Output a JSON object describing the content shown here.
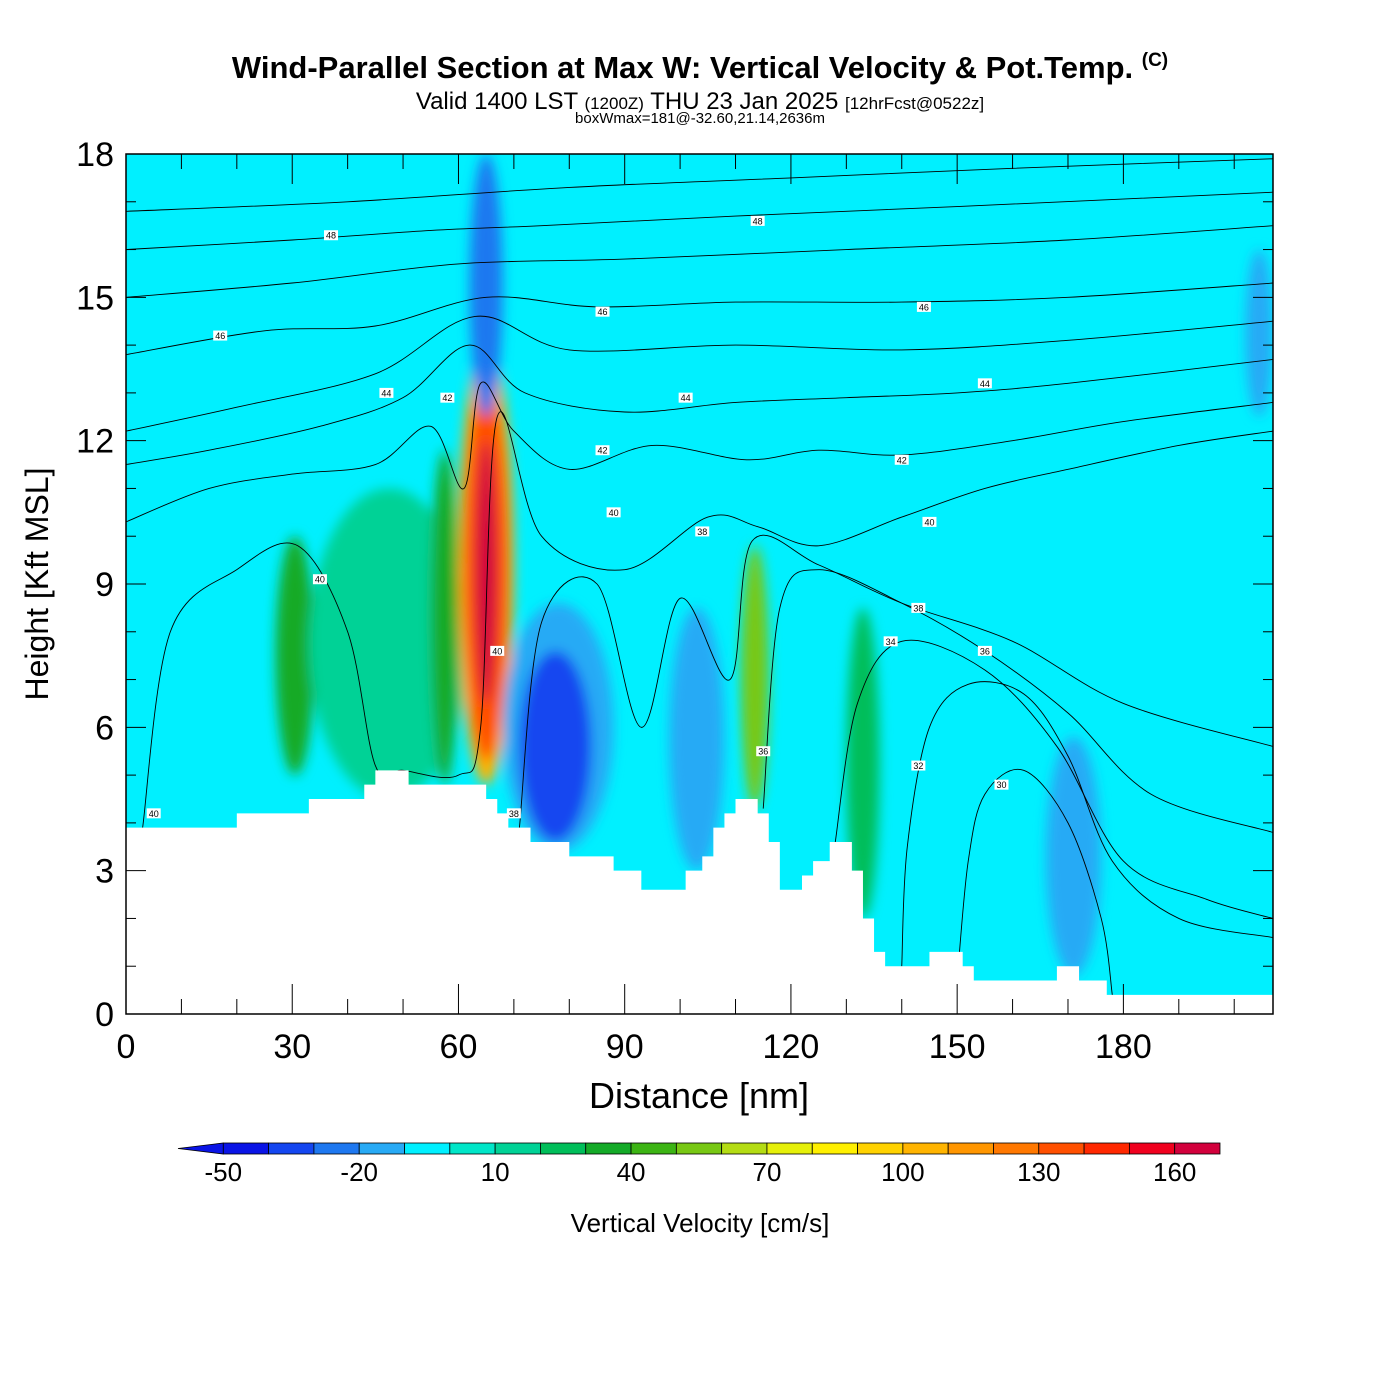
{
  "header": {
    "title": "Wind-Parallel Section at Max W: Vertical Velocity & Pot.Temp.",
    "copyright": "(C)",
    "valid_prefix": "Valid 1400 LST",
    "valid_utc": "(1200Z)",
    "valid_date": "THU 23 Jan 2025",
    "forecast": "[12hrFcst@0522z]",
    "note": "boxWmax=181@-32.60,21.14,2636m"
  },
  "chart_data": {
    "type": "heatmap",
    "xlabel": "Distance [nm]",
    "ylabel": "Height [Kft MSL]",
    "xlim": [
      0,
      207
    ],
    "ylim": [
      0,
      18
    ],
    "x_ticks": [
      0,
      30,
      60,
      90,
      120,
      150,
      180
    ],
    "y_ticks": [
      0,
      3,
      6,
      9,
      12,
      15,
      18
    ],
    "colorbar": {
      "label": "Vertical Velocity [cm/s]",
      "range": [
        -50,
        180
      ],
      "step": 10,
      "tick_values": [
        -50,
        -20,
        10,
        40,
        70,
        100,
        130,
        160
      ],
      "colors": [
        "#0a14e6",
        "#1446f0",
        "#1e78f0",
        "#28aaf5",
        "#00f0ff",
        "#00e6c8",
        "#00d296",
        "#00be5a",
        "#14aa28",
        "#3cb414",
        "#78c814",
        "#b4dc14",
        "#e6f00a",
        "#fff000",
        "#ffd200",
        "#ffb400",
        "#ff9600",
        "#ff7800",
        "#ff5000",
        "#ff2800",
        "#f0001e",
        "#d2003c"
      ]
    },
    "terrain": [
      [
        0,
        3.9
      ],
      [
        20,
        3.9
      ],
      [
        20,
        4.2
      ],
      [
        33,
        4.2
      ],
      [
        33,
        4.5
      ],
      [
        43,
        4.5
      ],
      [
        43,
        4.8
      ],
      [
        45,
        4.8
      ],
      [
        45,
        5.1
      ],
      [
        51,
        5.1
      ],
      [
        51,
        4.8
      ],
      [
        65,
        4.8
      ],
      [
        65,
        4.5
      ],
      [
        67,
        4.5
      ],
      [
        67,
        4.2
      ],
      [
        69,
        4.2
      ],
      [
        69,
        3.9
      ],
      [
        73,
        3.9
      ],
      [
        73,
        3.6
      ],
      [
        80,
        3.6
      ],
      [
        80,
        3.3
      ],
      [
        88,
        3.3
      ],
      [
        88,
        3.0
      ],
      [
        93,
        3.0
      ],
      [
        93,
        2.6
      ],
      [
        101,
        2.6
      ],
      [
        101,
        3.0
      ],
      [
        104,
        3.0
      ],
      [
        104,
        3.3
      ],
      [
        106,
        3.3
      ],
      [
        106,
        3.9
      ],
      [
        108,
        3.9
      ],
      [
        108,
        4.2
      ],
      [
        110,
        4.2
      ],
      [
        110,
        4.5
      ],
      [
        114,
        4.5
      ],
      [
        114,
        4.2
      ],
      [
        116,
        4.2
      ],
      [
        116,
        3.6
      ],
      [
        118,
        3.6
      ],
      [
        118,
        2.6
      ],
      [
        122,
        2.6
      ],
      [
        122,
        2.9
      ],
      [
        124,
        2.9
      ],
      [
        124,
        3.2
      ],
      [
        127,
        3.2
      ],
      [
        127,
        3.6
      ],
      [
        131,
        3.6
      ],
      [
        131,
        3.0
      ],
      [
        133,
        3.0
      ],
      [
        133,
        2.0
      ],
      [
        135,
        2.0
      ],
      [
        135,
        1.3
      ],
      [
        137,
        1.3
      ],
      [
        137,
        1.0
      ],
      [
        145,
        1.0
      ],
      [
        145,
        1.3
      ],
      [
        151,
        1.3
      ],
      [
        151,
        1.0
      ],
      [
        153,
        1.0
      ],
      [
        153,
        0.7
      ],
      [
        168,
        0.7
      ],
      [
        168,
        1.0
      ],
      [
        172,
        1.0
      ],
      [
        172,
        0.7
      ],
      [
        177,
        0.7
      ],
      [
        177,
        0.4
      ],
      [
        207,
        0.4
      ]
    ],
    "w_cells": [
      {
        "x": [
          8,
          13
        ],
        "y": [
          4.5,
          9.5
        ],
        "w": -10
      },
      {
        "x": [
          27,
          34
        ],
        "y": [
          5.0,
          10.0
        ],
        "w": 35
      },
      {
        "x": [
          33,
          62
        ],
        "y": [
          4.5,
          11.0
        ],
        "w": 15
      },
      {
        "x": [
          55,
          60
        ],
        "y": [
          4.8,
          11.8
        ],
        "w": 35
      },
      {
        "x": [
          60,
          70
        ],
        "y": [
          4.8,
          14.0
        ],
        "w": 105
      },
      {
        "x": [
          61,
          69
        ],
        "y": [
          5.3,
          13.3
        ],
        "w": 135
      },
      {
        "x": [
          63,
          67
        ],
        "y": [
          6.5,
          12.0
        ],
        "w": 165
      },
      {
        "x": [
          62,
          68
        ],
        "y": [
          12.5,
          18.0
        ],
        "w": -30
      },
      {
        "x": [
          68,
          88
        ],
        "y": [
          3.4,
          8.6
        ],
        "w": -20
      },
      {
        "x": [
          71,
          84
        ],
        "y": [
          3.6,
          7.6
        ],
        "w": -40
      },
      {
        "x": [
          98,
          108
        ],
        "y": [
          3.0,
          8.5
        ],
        "w": -15
      },
      {
        "x": [
          111,
          116
        ],
        "y": [
          4.3,
          9.8
        ],
        "w": 55
      },
      {
        "x": [
          130,
          136
        ],
        "y": [
          2.0,
          8.5
        ],
        "w": 25
      },
      {
        "x": [
          166,
          176
        ],
        "y": [
          0.8,
          5.8
        ],
        "w": -15
      },
      {
        "x": [
          202,
          207
        ],
        "y": [
          12.5,
          16.0
        ],
        "w": -20
      }
    ],
    "contours": [
      {
        "label": "30",
        "points": [
          [
            150,
            0.7
          ],
          [
            152,
            3.2
          ],
          [
            155,
            4.6
          ],
          [
            162,
            5.1
          ],
          [
            170,
            4.0
          ],
          [
            176,
            2.0
          ],
          [
            178,
            0.4
          ]
        ]
      },
      {
        "label": "32",
        "points": [
          [
            140,
            1.0
          ],
          [
            141,
            3.5
          ],
          [
            145,
            6.0
          ],
          [
            152,
            6.9
          ],
          [
            162,
            6.7
          ],
          [
            170,
            5.4
          ],
          [
            178,
            3.2
          ],
          [
            190,
            2.0
          ],
          [
            207,
            1.6
          ]
        ]
      },
      {
        "label": "34",
        "points": [
          [
            128,
            3.6
          ],
          [
            132,
            6.5
          ],
          [
            140,
            7.8
          ],
          [
            155,
            7.2
          ],
          [
            168,
            5.6
          ],
          [
            180,
            3.2
          ],
          [
            195,
            2.4
          ],
          [
            207,
            2.0
          ]
        ]
      },
      {
        "label": "36",
        "points": [
          [
            115,
            4.3
          ],
          [
            118,
            8.5
          ],
          [
            125,
            9.3
          ],
          [
            140,
            8.6
          ],
          [
            155,
            7.6
          ],
          [
            170,
            6.3
          ],
          [
            185,
            4.6
          ],
          [
            207,
            3.8
          ]
        ]
      },
      {
        "label": "38",
        "points": [
          [
            71,
            3.9
          ],
          [
            75,
            8.2
          ],
          [
            85,
            9.0
          ],
          [
            93,
            6.0
          ],
          [
            100,
            8.7
          ],
          [
            109,
            7.0
          ],
          [
            113,
            9.9
          ],
          [
            125,
            9.4
          ],
          [
            140,
            8.6
          ],
          [
            160,
            7.8
          ],
          [
            180,
            6.5
          ],
          [
            207,
            5.6
          ]
        ]
      },
      {
        "label": "40",
        "points": [
          [
            3,
            3.9
          ],
          [
            8,
            8.0
          ],
          [
            20,
            9.3
          ],
          [
            31,
            9.8
          ],
          [
            40,
            8.0
          ],
          [
            45,
            5.2
          ],
          [
            50,
            5.1
          ],
          [
            60,
            5.0
          ],
          [
            64,
            6.0
          ],
          [
            67,
            12.5
          ],
          [
            75,
            10.0
          ],
          [
            90,
            9.3
          ],
          [
            105,
            10.4
          ],
          [
            114,
            10.2
          ],
          [
            125,
            9.8
          ],
          [
            140,
            10.4
          ],
          [
            155,
            11.0
          ],
          [
            170,
            11.4
          ],
          [
            190,
            11.9
          ],
          [
            207,
            12.2
          ]
        ]
      },
      {
        "label": "42",
        "points": [
          [
            0,
            10.3
          ],
          [
            15,
            11.0
          ],
          [
            30,
            11.3
          ],
          [
            45,
            11.5
          ],
          [
            55,
            12.3
          ],
          [
            61,
            11.0
          ],
          [
            64,
            13.2
          ],
          [
            70,
            12.2
          ],
          [
            80,
            11.4
          ],
          [
            95,
            11.9
          ],
          [
            112,
            11.6
          ],
          [
            125,
            11.8
          ],
          [
            140,
            11.7
          ],
          [
            160,
            12.0
          ],
          [
            180,
            12.4
          ],
          [
            207,
            12.8
          ]
        ]
      },
      {
        "label": "44",
        "points": [
          [
            0,
            11.5
          ],
          [
            15,
            11.8
          ],
          [
            35,
            12.3
          ],
          [
            50,
            12.9
          ],
          [
            62,
            14.0
          ],
          [
            72,
            13.0
          ],
          [
            90,
            12.6
          ],
          [
            110,
            12.8
          ],
          [
            130,
            12.9
          ],
          [
            150,
            13.0
          ],
          [
            170,
            13.2
          ],
          [
            207,
            13.7
          ]
        ]
      },
      {
        "label": "46",
        "points": [
          [
            0,
            13.8
          ],
          [
            25,
            14.3
          ],
          [
            45,
            14.4
          ],
          [
            65,
            15.0
          ],
          [
            85,
            14.8
          ],
          [
            110,
            14.9
          ],
          [
            140,
            14.9
          ],
          [
            170,
            15.0
          ],
          [
            207,
            15.3
          ]
        ]
      },
      {
        "label": "48",
        "points": [
          [
            0,
            16.0
          ],
          [
            30,
            16.2
          ],
          [
            55,
            16.4
          ],
          [
            75,
            16.5
          ],
          [
            110,
            16.7
          ],
          [
            150,
            16.9
          ],
          [
            207,
            17.2
          ]
        ]
      },
      {
        "label": "",
        "points": [
          [
            0,
            16.8
          ],
          [
            40,
            17.0
          ],
          [
            80,
            17.3
          ],
          [
            120,
            17.5
          ],
          [
            160,
            17.7
          ],
          [
            207,
            17.9
          ]
        ]
      },
      {
        "label": "",
        "points": [
          [
            0,
            12.2
          ],
          [
            20,
            12.7
          ],
          [
            45,
            13.4
          ],
          [
            63,
            14.6
          ],
          [
            80,
            13.9
          ],
          [
            110,
            14.0
          ],
          [
            140,
            13.9
          ],
          [
            170,
            14.1
          ],
          [
            207,
            14.5
          ]
        ]
      },
      {
        "label": "",
        "points": [
          [
            0,
            15.0
          ],
          [
            30,
            15.3
          ],
          [
            60,
            15.7
          ],
          [
            90,
            15.8
          ],
          [
            130,
            16.0
          ],
          [
            170,
            16.2
          ],
          [
            207,
            16.5
          ]
        ]
      }
    ],
    "contour_labels": [
      {
        "text": "48",
        "x": 37,
        "y": 16.3
      },
      {
        "text": "46",
        "x": 17,
        "y": 14.2
      },
      {
        "text": "44",
        "x": 47,
        "y": 13.0
      },
      {
        "text": "42",
        "x": 58,
        "y": 12.9
      },
      {
        "text": "48",
        "x": 114,
        "y": 16.6
      },
      {
        "text": "46",
        "x": 86,
        "y": 14.7
      },
      {
        "text": "46",
        "x": 144,
        "y": 14.8
      },
      {
        "text": "44",
        "x": 101,
        "y": 12.9
      },
      {
        "text": "44",
        "x": 155,
        "y": 13.2
      },
      {
        "text": "42",
        "x": 86,
        "y": 11.8
      },
      {
        "text": "42",
        "x": 140,
        "y": 11.6
      },
      {
        "text": "40",
        "x": 88,
        "y": 10.5
      },
      {
        "text": "40",
        "x": 145,
        "y": 10.3
      },
      {
        "text": "38",
        "x": 104,
        "y": 10.1
      },
      {
        "text": "38",
        "x": 143,
        "y": 8.5
      },
      {
        "text": "36",
        "x": 155,
        "y": 7.6
      },
      {
        "text": "34",
        "x": 138,
        "y": 7.8
      },
      {
        "text": "32",
        "x": 143,
        "y": 5.2
      },
      {
        "text": "30",
        "x": 158,
        "y": 4.8
      },
      {
        "text": "40",
        "x": 35,
        "y": 9.1
      },
      {
        "text": "40",
        "x": 67,
        "y": 7.6
      },
      {
        "text": "38",
        "x": 70,
        "y": 4.2
      },
      {
        "text": "36",
        "x": 115,
        "y": 5.5
      },
      {
        "text": "40",
        "x": 5,
        "y": 4.2
      }
    ]
  }
}
